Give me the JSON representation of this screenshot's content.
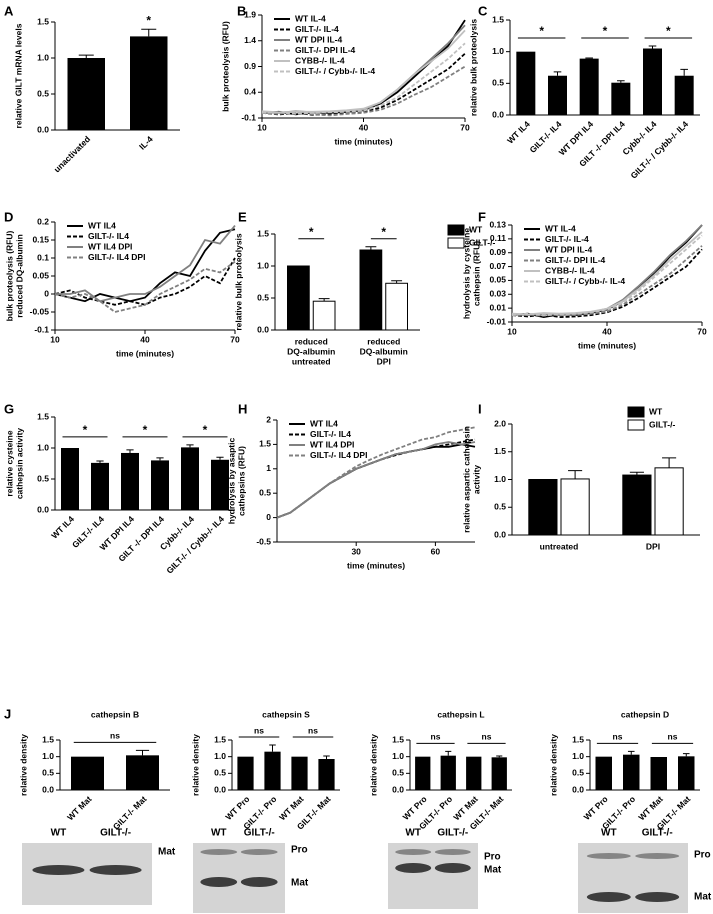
{
  "chart_data": [
    {
      "type": "bar",
      "panel": "A",
      "ylabel": "relative GILT mRNA levels",
      "categories": [
        "unactivated",
        "IL-4"
      ],
      "values": [
        1.0,
        1.3
      ],
      "errors": [
        0.04,
        0.1
      ],
      "color": "#000000",
      "significance": [
        "*"
      ],
      "ylim": [
        0,
        1.5
      ],
      "yticks": [
        {
          "value": 0,
          "label": "0.0"
        },
        0.5,
        {
          "value": 1,
          "label": "1.0"
        },
        1.5
      ]
    },
    {
      "type": "line",
      "panel": "B",
      "ylabel": "bulk proteolysis (RFU)",
      "xlabel": "time (minutes)",
      "legend": "upper left",
      "x": [
        10,
        15,
        20,
        25,
        30,
        35,
        40,
        45,
        50,
        55,
        60,
        65,
        70
      ],
      "series": [
        {
          "name": "WT IL-4",
          "color": "#000000",
          "dashed": false,
          "values": [
            0,
            0.02,
            -0.03,
            0.01,
            0,
            0.02,
            0.05,
            0.18,
            0.4,
            0.7,
            1.0,
            1.3,
            1.8
          ]
        },
        {
          "name": "GILT-/- IL-4",
          "color": "#000000",
          "dashed": true,
          "values": [
            0,
            -0.03,
            0,
            -0.04,
            -0.02,
            0,
            0.02,
            0.1,
            0.25,
            0.45,
            0.65,
            0.85,
            1.15
          ]
        },
        {
          "name": "WT DPI IL-4",
          "color": "#808080",
          "dashed": false,
          "values": [
            0.02,
            0,
            0.03,
            0.01,
            0.02,
            0.04,
            0.06,
            0.2,
            0.45,
            0.75,
            1.05,
            1.35,
            1.7
          ]
        },
        {
          "name": "GILT-/- DPI IL-4",
          "color": "#808080",
          "dashed": true,
          "values": [
            0,
            -0.02,
            0.02,
            -0.03,
            -0.05,
            -0.02,
            0,
            0.06,
            0.18,
            0.35,
            0.5,
            0.7,
            0.9
          ]
        },
        {
          "name": "CYBB-/- IL-4",
          "color": "#c0c0c0",
          "dashed": false,
          "values": [
            0.03,
            0.01,
            0.02,
            0.02,
            0.03,
            0.05,
            0.08,
            0.2,
            0.45,
            0.75,
            1.0,
            1.25,
            1.6
          ]
        },
        {
          "name": "GILT-/- / Cybb-/- IL-4",
          "color": "#c0c0c0",
          "dashed": true,
          "values": [
            0,
            0.01,
            -0.02,
            0,
            0.01,
            0.02,
            0.04,
            0.14,
            0.3,
            0.55,
            0.8,
            1.05,
            1.35
          ]
        }
      ],
      "xlim": [
        10,
        70
      ],
      "xticks": [
        10,
        40,
        70
      ],
      "ylim": [
        -0.1,
        1.9
      ],
      "yticks": [
        -0.1,
        0.4,
        0.9,
        1.4,
        1.9
      ]
    },
    {
      "type": "bar",
      "panel": "C",
      "ylabel": "relative bulk proteolysis",
      "categories": [
        "WT IL4",
        "GILT-/- IL4",
        "WT DPI IL4",
        "GILT -/- DPI IL4",
        "Cybb-/- IL4",
        "GILT-/- / Cybb-/- IL4"
      ],
      "values": [
        1.0,
        0.62,
        0.89,
        0.51,
        1.05,
        0.62
      ],
      "errors": [
        0,
        0.06,
        0.01,
        0.03,
        0.04,
        0.1
      ],
      "color": "#000000",
      "significance": [
        "*",
        "*",
        "*"
      ],
      "ylim": [
        0,
        1.5
      ],
      "yticks": [
        {
          "value": 0,
          "label": "0.0"
        },
        0.5,
        {
          "value": 1,
          "label": "1.0"
        },
        1.5
      ]
    },
    {
      "type": "line",
      "panel": "D",
      "ylabel": [
        "bulk proteolysis (RFU)",
        "reduced DQ-albumin"
      ],
      "xlabel": "time (minutes)",
      "legend": "upper left",
      "x": [
        10,
        15,
        20,
        25,
        30,
        35,
        40,
        45,
        50,
        55,
        60,
        65,
        70
      ],
      "series": [
        {
          "name": "WT IL4",
          "color": "#000000",
          "dashed": false,
          "values": [
            0,
            -0.01,
            -0.02,
            0,
            -0.01,
            -0.02,
            -0.01,
            0.03,
            0.06,
            0.05,
            0.12,
            0.17,
            0.18
          ]
        },
        {
          "name": "GILT-/- IL4",
          "color": "#000000",
          "dashed": true,
          "values": [
            0,
            0.01,
            -0.01,
            -0.02,
            -0.03,
            -0.02,
            -0.03,
            -0.01,
            0,
            0.02,
            0.05,
            0.03,
            0.1
          ]
        },
        {
          "name": "WT IL4 DPI",
          "color": "#808080",
          "dashed": false,
          "values": [
            0,
            0,
            0.01,
            -0.02,
            -0.01,
            0,
            0,
            0.02,
            0.05,
            0.08,
            0.15,
            0.14,
            0.19
          ]
        },
        {
          "name": "GILT-/- IL4 DPI",
          "color": "#808080",
          "dashed": true,
          "values": [
            0,
            -0.01,
            0,
            -0.02,
            -0.05,
            -0.04,
            -0.03,
            0,
            0.02,
            0.04,
            0.07,
            0.06,
            0.09
          ]
        }
      ],
      "xlim": [
        10,
        70
      ],
      "xticks": [
        10,
        40,
        70
      ],
      "ylim": [
        -0.1,
        0.2
      ],
      "yticks": [
        -0.1,
        -0.05,
        0,
        0.05,
        0.1,
        0.15,
        0.2
      ]
    },
    {
      "type": "grouped_bar",
      "panel": "E",
      "ylabel": "relative bulk proteolysis",
      "legend": "outside right",
      "categories": [
        [
          "reduced",
          "DQ-albumin",
          "untreated"
        ],
        [
          "reduced",
          "DQ-albumin",
          "DPI"
        ]
      ],
      "series": [
        {
          "name": "WT",
          "color": "#000000",
          "values": [
            1.0,
            1.25
          ],
          "errors": [
            0,
            0.05
          ]
        },
        {
          "name": "GILT-/-",
          "color": "#ffffff",
          "values": [
            0.45,
            0.73
          ],
          "errors": [
            0.04,
            0.04
          ]
        }
      ],
      "significance": [
        "*",
        "*"
      ],
      "ylim": [
        0,
        1.5
      ],
      "yticks": [
        {
          "value": 0,
          "label": "0.0"
        },
        0.5,
        {
          "value": 1,
          "label": "1.0"
        },
        1.5
      ]
    },
    {
      "type": "line",
      "panel": "F",
      "ylabel": [
        "hydrolysis by cysteine",
        "cathepsin (RFU)"
      ],
      "xlabel": "time (minutes)",
      "legend": "upper left",
      "x": [
        10,
        15,
        20,
        25,
        30,
        35,
        40,
        45,
        50,
        55,
        60,
        65,
        70
      ],
      "series": [
        {
          "name": "WT IL-4",
          "color": "#000000",
          "dashed": false,
          "values": [
            0,
            0.002,
            -0.003,
            0.001,
            0,
            0.003,
            0.008,
            0.02,
            0.04,
            0.06,
            0.085,
            0.105,
            0.13
          ]
        },
        {
          "name": "GILT-/- IL-4",
          "color": "#000000",
          "dashed": true,
          "values": [
            0,
            -0.002,
            0.001,
            -0.003,
            -0.002,
            0,
            0.004,
            0.012,
            0.025,
            0.04,
            0.055,
            0.07,
            0.095
          ]
        },
        {
          "name": "WT DPI IL-4",
          "color": "#808080",
          "dashed": false,
          "values": [
            0.001,
            0,
            0.002,
            0,
            0.001,
            0.004,
            0.009,
            0.022,
            0.042,
            0.063,
            0.087,
            0.107,
            0.13
          ]
        },
        {
          "name": "GILT-/- DPI IL-4",
          "color": "#808080",
          "dashed": true,
          "values": [
            0,
            0.001,
            -0.001,
            0.002,
            0,
            0.002,
            0.005,
            0.015,
            0.03,
            0.045,
            0.06,
            0.08,
            0.1
          ]
        },
        {
          "name": "CYBB-/- IL-4",
          "color": "#c0c0c0",
          "dashed": false,
          "values": [
            0.002,
            0.001,
            0.003,
            0.002,
            0.003,
            0.005,
            0.009,
            0.02,
            0.038,
            0.058,
            0.08,
            0.1,
            0.12
          ]
        },
        {
          "name": "GILT-/- / Cybb-/- IL-4",
          "color": "#c0c0c0",
          "dashed": true,
          "values": [
            0,
            0.002,
            0,
            0.001,
            0.002,
            0.004,
            0.008,
            0.018,
            0.035,
            0.055,
            0.075,
            0.095,
            0.115
          ]
        }
      ],
      "xlim": [
        10,
        70
      ],
      "xticks": [
        10,
        40,
        70
      ],
      "ylim": [
        -0.01,
        0.13
      ],
      "yticks": [
        -0.01,
        0.01,
        0.03,
        0.05,
        0.07,
        0.09,
        0.11,
        0.13
      ]
    },
    {
      "type": "bar",
      "panel": "G",
      "ylabel": [
        "relative cysteine",
        "cathepsin activity"
      ],
      "categories": [
        "WT IL4",
        "GILT-/- IL4",
        "WT DPI IL4",
        "GILT -/- DPI IL4",
        "Cybb-/- IL4",
        "GILT-/- / Cybb-/- IL4"
      ],
      "values": [
        1.0,
        0.76,
        0.92,
        0.8,
        1.01,
        0.81
      ],
      "errors": [
        0,
        0.03,
        0.05,
        0.04,
        0.04,
        0.04
      ],
      "color": "#000000",
      "significance": [
        "*",
        "*",
        "*"
      ],
      "ylim": [
        0,
        1.5
      ],
      "yticks": [
        {
          "value": 0,
          "label": "0.0"
        },
        0.5,
        {
          "value": 1,
          "label": "1.0"
        },
        1.5
      ]
    },
    {
      "type": "line",
      "panel": "H",
      "ylabel": [
        "hydrolysis by asaptic",
        "cathepsins (RFU)"
      ],
      "xlabel": "time (minutes)",
      "legend": "upper left",
      "x": [
        0,
        5,
        10,
        15,
        20,
        25,
        30,
        35,
        40,
        45,
        50,
        55,
        60,
        65,
        70,
        75
      ],
      "series": [
        {
          "name": "WT IL4",
          "color": "#000000",
          "dashed": false,
          "values": [
            0,
            0.1,
            0.3,
            0.5,
            0.7,
            0.85,
            1.0,
            1.1,
            1.2,
            1.3,
            1.35,
            1.4,
            1.45,
            1.45,
            1.5,
            1.45
          ]
        },
        {
          "name": "GILT-/- IL4",
          "color": "#000000",
          "dashed": true,
          "values": [
            0,
            0.1,
            0.3,
            0.5,
            0.7,
            0.85,
            1.0,
            1.1,
            1.2,
            1.28,
            1.35,
            1.4,
            1.45,
            1.5,
            1.55,
            1.6
          ]
        },
        {
          "name": "WT IL4 DPI",
          "color": "#808080",
          "dashed": false,
          "values": [
            0,
            0.1,
            0.3,
            0.5,
            0.7,
            0.85,
            1.0,
            1.1,
            1.2,
            1.3,
            1.35,
            1.4,
            1.5,
            1.55,
            1.5,
            1.55
          ]
        },
        {
          "name": "GILT-/- IL4 DPI",
          "color": "#808080",
          "dashed": true,
          "values": [
            0,
            0.1,
            0.3,
            0.5,
            0.7,
            0.88,
            1.05,
            1.18,
            1.3,
            1.4,
            1.5,
            1.6,
            1.65,
            1.75,
            1.8,
            1.85
          ]
        }
      ],
      "xlim": [
        0,
        75
      ],
      "xticks": [
        30,
        60
      ],
      "ylim": [
        -0.5,
        2
      ],
      "yticks": [
        -0.5,
        0,
        0.5,
        1,
        1.5,
        2
      ]
    },
    {
      "type": "grouped_bar",
      "panel": "I",
      "ylabel": [
        "relative aspartic cathepsin",
        "activity"
      ],
      "legend": "upper right",
      "categories": [
        "untreated",
        "DPI"
      ],
      "series": [
        {
          "name": "WT",
          "color": "#000000",
          "values": [
            1.0,
            1.08
          ],
          "errors": [
            0,
            0.05
          ]
        },
        {
          "name": "GILT-/-",
          "color": "#ffffff",
          "values": [
            1.01,
            1.21
          ],
          "errors": [
            0.15,
            0.18
          ]
        }
      ],
      "ylim": [
        0,
        2
      ],
      "yticks": [
        {
          "value": 0,
          "label": "0.0"
        },
        0.5,
        {
          "value": 1,
          "label": "1.0"
        },
        1.5,
        {
          "value": 2,
          "label": "2.0"
        }
      ]
    },
    {
      "type": "bar",
      "panel": "J",
      "title": "cathepsin B",
      "ylabel": "relative density",
      "categories": [
        "WT Mat",
        "GILT-/- Mat"
      ],
      "values": [
        1.0,
        1.04
      ],
      "errors": [
        0,
        0.15
      ],
      "color": "#000000",
      "significance": [
        "ns"
      ],
      "ylim": [
        0,
        1.5
      ],
      "yticks": [
        {
          "value": 0,
          "label": "0.0"
        },
        0.5,
        {
          "value": 1,
          "label": "1.0"
        },
        1.5
      ],
      "blot": {
        "lanes": [
          "WT",
          "GILT-/-"
        ],
        "bands": [
          "Mat"
        ]
      }
    },
    {
      "type": "bar",
      "title": "cathepsin S",
      "ylabel": "relative density",
      "categories": [
        "WT Pro",
        "GILT-/- Pro",
        "WT Mat",
        "GILT-/- Mat"
      ],
      "values": [
        1.0,
        1.15,
        1.0,
        0.93
      ],
      "errors": [
        0,
        0.2,
        0,
        0.09
      ],
      "color": "#000000",
      "significance": [
        "ns",
        "ns"
      ],
      "ylim": [
        0,
        1.5
      ],
      "yticks": [
        {
          "value": 0,
          "label": "0.0"
        },
        0.5,
        {
          "value": 1,
          "label": "1.0"
        },
        1.5
      ],
      "blot": {
        "lanes": [
          "WT",
          "GILT-/-"
        ],
        "bands": [
          "Pro",
          "Mat"
        ]
      }
    },
    {
      "type": "bar",
      "title": "cathepsin L",
      "ylabel": "relative density",
      "categories": [
        "WT Pro",
        "GILT-/- Pro",
        "WT Mat",
        "GILT-/- Mat"
      ],
      "values": [
        1.0,
        1.03,
        1.0,
        0.98
      ],
      "errors": [
        0,
        0.13,
        0,
        0.04
      ],
      "color": "#000000",
      "significance": [
        "ns",
        "ns"
      ],
      "ylim": [
        0,
        1.5
      ],
      "yticks": [
        {
          "value": 0,
          "label": "0.0"
        },
        0.5,
        {
          "value": 1,
          "label": "1.0"
        },
        1.5
      ],
      "blot": {
        "lanes": [
          "WT",
          "GILT-/-"
        ],
        "bands": [
          "Pro",
          "Mat"
        ]
      }
    },
    {
      "type": "bar",
      "title": "cathepsin D",
      "ylabel": "relative density",
      "categories": [
        "WT Pro",
        "GILT-/- Pro",
        "WT Mat",
        "GILT-/- Mat"
      ],
      "values": [
        1.0,
        1.06,
        0.99,
        1.01
      ],
      "errors": [
        0,
        0.1,
        0,
        0.08
      ],
      "color": "#000000",
      "significance": [
        "ns",
        "ns"
      ],
      "ylim": [
        0,
        1.5
      ],
      "yticks": [
        {
          "value": 0,
          "label": "0.0"
        },
        0.5,
        {
          "value": 1,
          "label": "1.0"
        },
        1.5
      ],
      "blot": {
        "lanes": [
          "WT",
          "GILT-/-"
        ],
        "bands": [
          "Pro",
          "Mat"
        ]
      }
    }
  ]
}
